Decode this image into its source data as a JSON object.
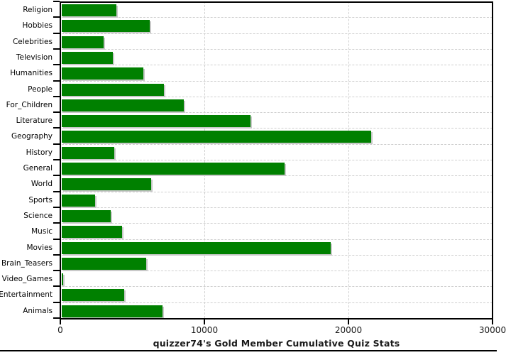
{
  "chart_data": {
    "type": "bar",
    "orientation": "horizontal",
    "title": "quizzer74's Gold Member Cumulative Quiz Stats",
    "categories": [
      "Religion",
      "Hobbies",
      "Celebrities",
      "Television",
      "Humanities",
      "People",
      "For_Children",
      "Literature",
      "Geography",
      "History",
      "General",
      "World",
      "Sports",
      "Science",
      "Music",
      "Movies",
      "Brain_Teasers",
      "Video_Games",
      "Entertainment",
      "Animals"
    ],
    "values": [
      3800,
      6100,
      2900,
      3550,
      5650,
      7100,
      8450,
      13100,
      21500,
      3650,
      15450,
      6200,
      2300,
      3400,
      4200,
      18650,
      5850,
      100,
      4350,
      7000
    ],
    "xlabel": "",
    "ylabel": "",
    "xlim": [
      0,
      30000
    ],
    "xticks": [
      0,
      10000,
      20000,
      30000
    ],
    "xtick_labels": [
      "0",
      "10000",
      "20000",
      "30000"
    ],
    "grid": "dashed",
    "legend": "none",
    "bar_color": "#008000",
    "shadow_color": "#c9c9c9",
    "gridline_color": "#cfcfcf",
    "axis_color": "#000000",
    "background_color": "#ffffff"
  }
}
